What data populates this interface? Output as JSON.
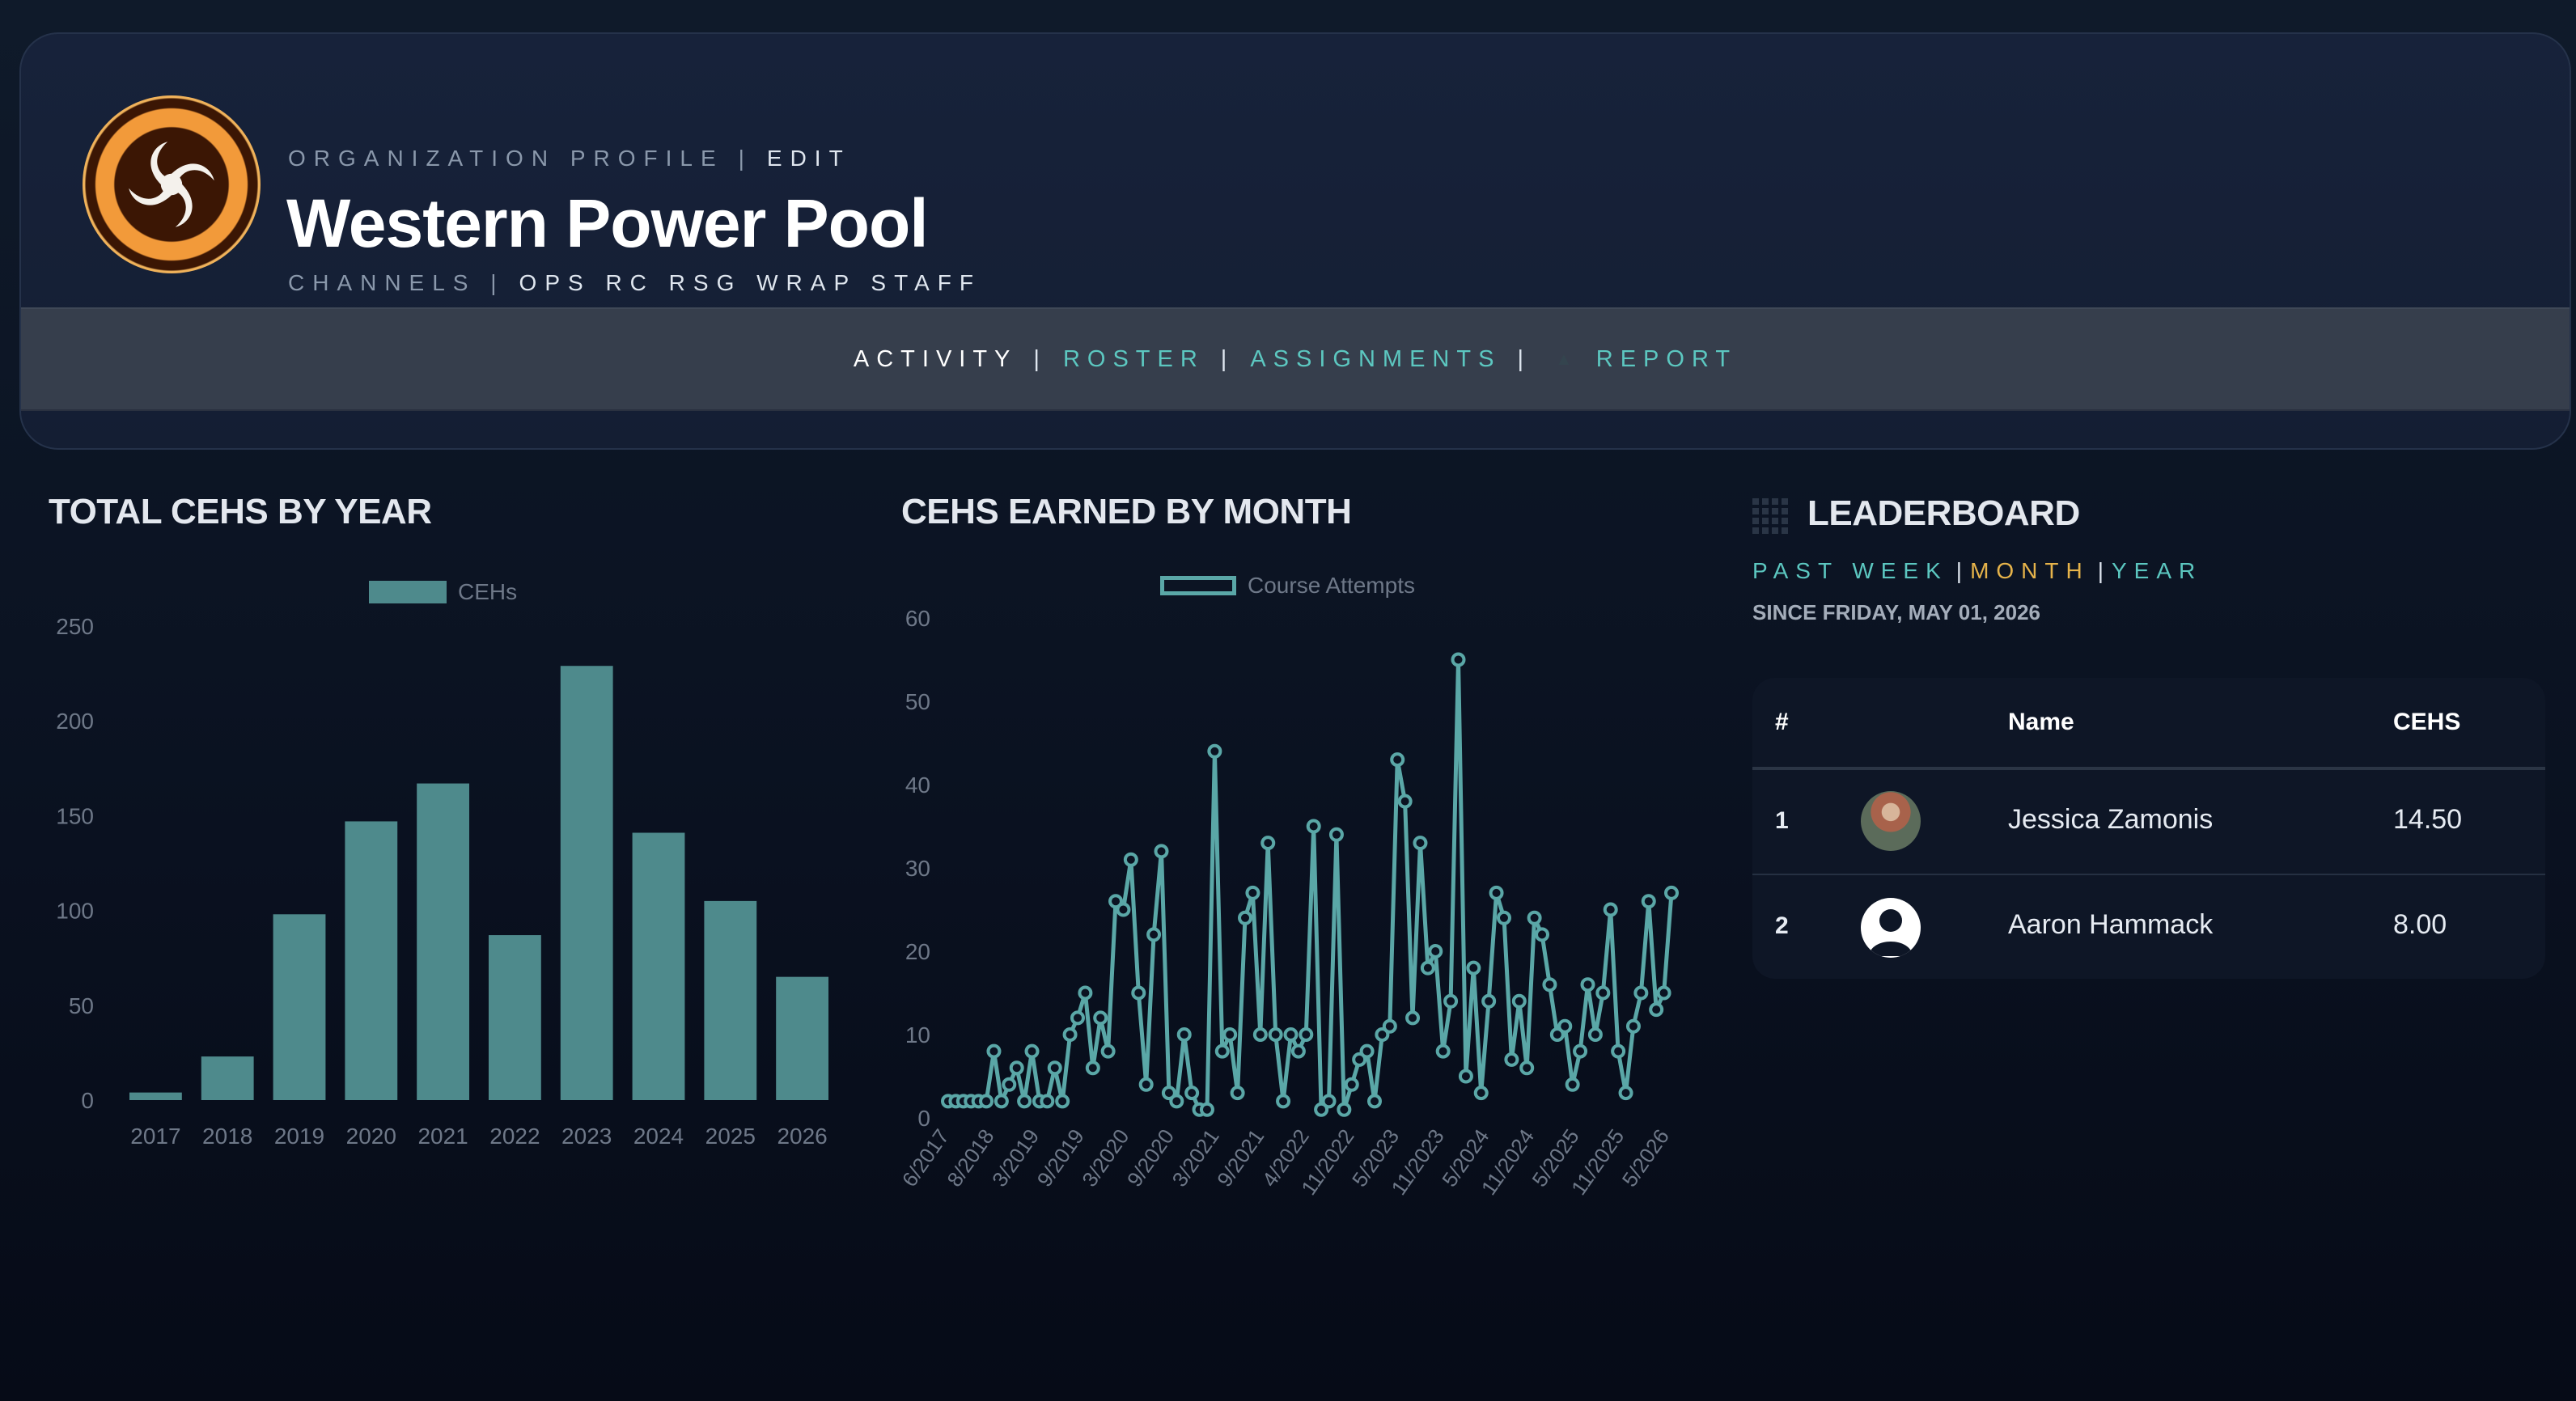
{
  "header": {
    "eyebrow": "ORGANIZATION PROFILE",
    "eyebrow_sep": "|",
    "edit_label": "EDIT",
    "org_name": "Western Power Pool",
    "channels_label": "CHANNELS |",
    "channels_list": "OPS RC RSG WRAP STAFF",
    "logo_icon": "hurricane-logo-icon"
  },
  "tabs": [
    {
      "label": "ACTIVITY",
      "active": true
    },
    {
      "label": "ROSTER",
      "active": false
    },
    {
      "label": "ASSIGNMENTS",
      "active": false
    },
    {
      "label": "REPORT",
      "active": false,
      "icon": "report-icon"
    }
  ],
  "tab_sep": "|",
  "colors": {
    "accent": "#5cc7c0",
    "highlight": "#e6b34a",
    "bar": "#4e8a8c",
    "line": "#5aa7a7"
  },
  "yearly": {
    "title": "TOTAL CEHS BY YEAR",
    "legend": "CEHs",
    "yticks": [
      "0",
      "50",
      "100",
      "150",
      "200",
      "250"
    ]
  },
  "monthly": {
    "title": "CEHS EARNED BY MONTH",
    "legend": "Course Attempts",
    "yticks": [
      "0",
      "10",
      "20",
      "30",
      "40",
      "50",
      "60"
    ],
    "xticks": [
      "6/2017",
      "8/2018",
      "3/2019",
      "9/2019",
      "3/2020",
      "9/2020",
      "3/2021",
      "9/2021",
      "4/2022",
      "11/2022",
      "5/2023",
      "11/2023",
      "5/2024",
      "11/2024",
      "5/2025",
      "11/2025",
      "5/2026"
    ]
  },
  "chart_data": [
    {
      "type": "bar",
      "title": "TOTAL CEHS BY YEAR",
      "categories": [
        "2017",
        "2018",
        "2019",
        "2020",
        "2021",
        "2022",
        "2023",
        "2024",
        "2025",
        "2026"
      ],
      "series": [
        {
          "name": "CEHs",
          "values": [
            4,
            23,
            98,
            147,
            167,
            87,
            229,
            141,
            105,
            65
          ]
        }
      ],
      "ylim": [
        0,
        250
      ],
      "legend": "top"
    },
    {
      "type": "line",
      "title": "CEHS EARNED BY MONTH",
      "x_tick_labels": [
        "6/2017",
        "8/2018",
        "3/2019",
        "9/2019",
        "3/2020",
        "9/2020",
        "3/2021",
        "9/2021",
        "4/2022",
        "11/2022",
        "5/2023",
        "11/2023",
        "5/2024",
        "11/2024",
        "5/2025",
        "11/2025",
        "5/2026"
      ],
      "series": [
        {
          "name": "Course Attempts",
          "values": [
            2,
            2,
            2,
            2,
            2,
            2,
            8,
            2,
            4,
            6,
            2,
            8,
            2,
            2,
            6,
            2,
            10,
            12,
            15,
            6,
            12,
            8,
            26,
            25,
            31,
            15,
            4,
            22,
            32,
            3,
            2,
            10,
            3,
            1,
            1,
            44,
            8,
            10,
            3,
            24,
            27,
            10,
            33,
            10,
            2,
            10,
            8,
            10,
            35,
            1,
            2,
            34,
            1,
            4,
            7,
            8,
            2,
            10,
            11,
            43,
            38,
            12,
            33,
            18,
            20,
            8,
            14,
            55,
            5,
            18,
            3,
            14,
            27,
            24,
            7,
            14,
            6,
            24,
            22,
            16,
            10,
            11,
            4,
            8,
            16,
            10,
            15,
            25,
            8,
            3,
            11,
            15,
            26,
            13,
            15,
            27
          ]
        }
      ],
      "ylim": [
        0,
        60
      ],
      "grid": false,
      "legend": "top"
    }
  ],
  "leaderboard": {
    "title": "LEADERBOARD",
    "icon": "leaderboard-grid-icon",
    "filters": {
      "week": "PAST WEEK",
      "month": "MONTH",
      "year": "YEAR",
      "sep": "|"
    },
    "since": "SINCE FRIDAY, MAY 01, 2026",
    "columns": {
      "rank": "#",
      "name": "Name",
      "cehs": "CEHS"
    },
    "rows": [
      {
        "rank": "1",
        "name": "Jessica Zamonis",
        "cehs": "14.50",
        "avatar": "photo-avatar"
      },
      {
        "rank": "2",
        "name": "Aaron Hammack",
        "cehs": "8.00",
        "avatar": "default-user-avatar"
      }
    ]
  }
}
